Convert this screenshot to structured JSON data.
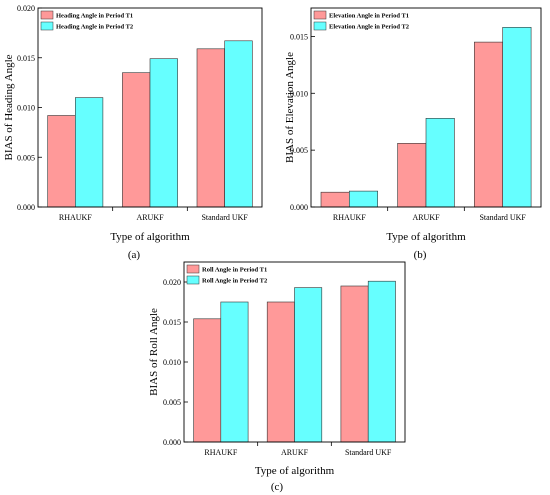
{
  "figure": {
    "colors": {
      "period_t1": "#ff9999",
      "period_t2": "#66ffff",
      "edge": "#333333"
    }
  },
  "chart_data": [
    {
      "type": "bar",
      "caption": "(a)",
      "categories": [
        "RHAUKF",
        "ARUKF",
        "Standard UKF"
      ],
      "series": [
        {
          "name": "Heading Angle in Period T1",
          "values": [
            0.0092,
            0.0135,
            0.0159
          ]
        },
        {
          "name": "Heading Angle in Period T2",
          "values": [
            0.011,
            0.0149,
            0.0167
          ]
        }
      ],
      "xlabel": "Type of algorithm",
      "ylabel": "BIAS of Heading Angle",
      "ylim": [
        0,
        0.02
      ],
      "yticks": [
        0.0,
        0.005,
        0.01,
        0.015,
        0.02
      ],
      "ytick_labels": [
        "0.000",
        "0.005",
        "0.010",
        "0.015",
        "0.020"
      ],
      "legend": "top-left",
      "grid": false
    },
    {
      "type": "bar",
      "caption": "(b)",
      "categories": [
        "RHAUKF",
        "ARUKF",
        "Standard UKF"
      ],
      "series": [
        {
          "name": "Elevation Angle in Period T1",
          "values": [
            0.0013,
            0.0056,
            0.0145
          ]
        },
        {
          "name": "Elevation Angle in Period T2",
          "values": [
            0.0014,
            0.0078,
            0.0158
          ]
        }
      ],
      "xlabel": "Type of algorithm",
      "ylabel": "BIAS of Elevation Angle",
      "ylim": [
        0,
        0.0175
      ],
      "yticks": [
        0.0,
        0.005,
        0.01,
        0.015
      ],
      "ytick_labels": [
        "0.000",
        "0.005",
        "0.010",
        "0.015"
      ],
      "legend": "top-left",
      "grid": false
    },
    {
      "type": "bar",
      "caption": "(c)",
      "categories": [
        "RHAUKF",
        "ARUKF",
        "Standard UKF"
      ],
      "series": [
        {
          "name": "Roll Angle in Period T1",
          "values": [
            0.0154,
            0.0175,
            0.0195
          ]
        },
        {
          "name": "Roll Angle in Period T2",
          "values": [
            0.0175,
            0.0193,
            0.0201
          ]
        }
      ],
      "xlabel": "Type of algorithm",
      "ylabel": "BIAS of Roll Angle",
      "ylim": [
        0,
        0.0225
      ],
      "yticks": [
        0.0,
        0.005,
        0.01,
        0.015,
        0.02
      ],
      "ytick_labels": [
        "0.000",
        "0.005",
        "0.010",
        "0.015",
        "0.020"
      ],
      "legend": "top-left",
      "grid": false
    }
  ]
}
